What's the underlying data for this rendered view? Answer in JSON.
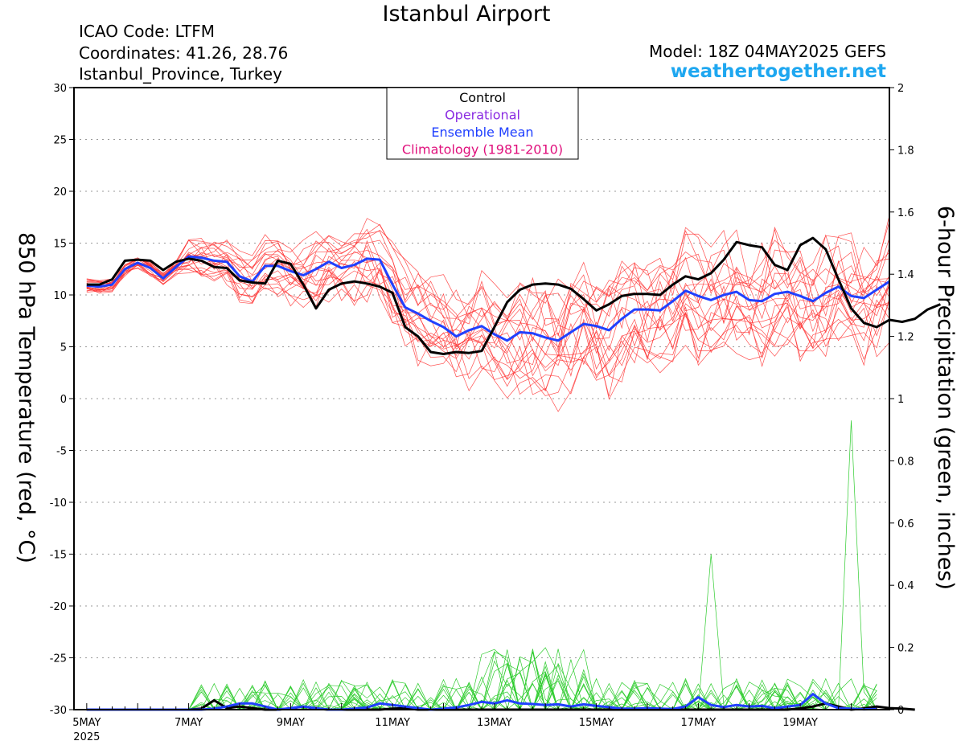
{
  "header": {
    "title": "Istanbul Airport",
    "icao": "ICAO Code: LTFM",
    "coordinates": "Coordinates: 41.26, 28.76",
    "location": "Istanbul_Province, Turkey",
    "model": "Model: 18Z 04MAY2025 GEFS",
    "website": "weathertogether.net"
  },
  "chart_data": {
    "type": "line",
    "title": "Istanbul Airport",
    "ylabel": "850 hPa Temperature (red, °C)",
    "y2label": "6-hour Precipitation (green, inches)",
    "ylim": [
      -30,
      30
    ],
    "y2lim": [
      0,
      2
    ],
    "yticks": [
      "30",
      "25",
      "20",
      "15",
      "10",
      "5",
      "0",
      "-5",
      "-10",
      "-15",
      "-20",
      "-25",
      "-30"
    ],
    "y2ticks": [
      "2",
      "1.8",
      "1.6",
      "1.4",
      "1.2",
      "1",
      "0.8",
      "0.6",
      "0.4",
      "0.2",
      "0"
    ],
    "xticks": [
      {
        "day": 5,
        "label": "5MAY",
        "sub": "2025"
      },
      {
        "day": 7,
        "label": "7MAY"
      },
      {
        "day": 9,
        "label": "9MAY"
      },
      {
        "day": 11,
        "label": "11MAY"
      },
      {
        "day": 13,
        "label": "13MAY"
      },
      {
        "day": 15,
        "label": "15MAY"
      },
      {
        "day": 17,
        "label": "17MAY"
      },
      {
        "day": 19,
        "label": "19MAY"
      }
    ],
    "xlim_days": [
      4.75,
      20.75
    ],
    "time_step_days": 0.25,
    "grid": "horizontal-dotted",
    "legend": {
      "placement": "top-center",
      "entries": [
        {
          "label": "Control",
          "color": "#000000"
        },
        {
          "label": "Operational",
          "color": "#8a2be2"
        },
        {
          "label": "Ensemble Mean",
          "color": "#2040ff"
        },
        {
          "label": "Climatology (1981-2010)",
          "color": "#e0107c"
        }
      ]
    },
    "series": [
      {
        "name": "Control",
        "axis": "temperature",
        "color": "#000000",
        "values": [
          11,
          11,
          11.5,
          13.3,
          13.4,
          13.3,
          12.4,
          13.2,
          13.5,
          13.3,
          12.7,
          12.6,
          11.4,
          11.2,
          11.1,
          13.3,
          13.0,
          11.0,
          8.7,
          10.5,
          11.1,
          11.3,
          11.1,
          10.8,
          10.2,
          6.9,
          6.0,
          4.5,
          4.3,
          4.5,
          4.4,
          4.6,
          6.9,
          9.3,
          10.5,
          11.0,
          11.1,
          11.0,
          10.6,
          9.6,
          8.5,
          9.1,
          9.9,
          10.1,
          10.1,
          10.0,
          11.0,
          11.8,
          11.5,
          12.1,
          13.4,
          15.1,
          14.8,
          14.6,
          12.9,
          12.4,
          14.8,
          15.5,
          14.4,
          11.5,
          8.7,
          7.3,
          6.9,
          7.6,
          7.4,
          7.7,
          8.6,
          9.1
        ]
      },
      {
        "name": "Ensemble Mean",
        "axis": "temperature",
        "color": "#2040ff",
        "values": [
          10.9,
          10.8,
          11.0,
          12.5,
          13.1,
          12.6,
          11.6,
          12.7,
          13.7,
          13.6,
          13.3,
          13.2,
          11.8,
          11.3,
          12.8,
          12.8,
          12.3,
          11.9,
          12.5,
          13.2,
          12.6,
          12.9,
          13.5,
          13.4,
          11.0,
          8.8,
          8.2,
          7.5,
          6.9,
          6.0,
          6.6,
          7.0,
          6.2,
          5.6,
          6.4,
          6.3,
          5.9,
          5.6,
          6.4,
          7.2,
          7.0,
          6.6,
          7.7,
          8.6,
          8.6,
          8.5,
          9.4,
          10.4,
          9.9,
          9.5,
          10.0,
          10.3,
          9.5,
          9.4,
          10.1,
          10.3,
          9.9,
          9.4,
          10.2,
          10.8,
          9.9,
          9.7,
          10.5,
          11.3
        ]
      },
      {
        "name": "Control precipitation",
        "axis": "precipitation",
        "color": "#000000",
        "values": [
          0,
          0,
          0,
          0,
          0,
          0,
          0,
          0,
          0,
          0.003,
          0.03,
          0.005,
          0.01,
          0.005,
          0,
          0,
          0.004,
          0.01,
          0.003,
          0,
          0,
          0,
          0,
          0,
          0.003,
          0.005,
          0,
          0,
          0,
          0,
          0,
          0,
          0,
          0,
          0,
          0,
          0,
          0,
          0,
          0,
          0,
          0,
          0,
          0,
          0,
          0,
          0,
          0,
          0,
          0,
          0,
          0,
          0,
          0,
          0,
          0,
          0.004,
          0.01,
          0.02,
          0.01,
          0,
          0.004,
          0.01,
          0.005,
          0.003,
          0
        ]
      },
      {
        "name": "Ensemble Mean precipitation",
        "axis": "precipitation",
        "color": "#2040ff",
        "values": [
          0,
          0,
          0,
          0,
          0,
          0,
          0,
          0,
          0,
          0,
          0.003,
          0.01,
          0.02,
          0.02,
          0.01,
          0,
          0.005,
          0.01,
          0.005,
          0,
          0,
          0.003,
          0.007,
          0.02,
          0.015,
          0.01,
          0.005,
          0,
          0.003,
          0.007,
          0.015,
          0.025,
          0.02,
          0.03,
          0.02,
          0.018,
          0.015,
          0.017,
          0.01,
          0.017,
          0.012,
          0.008,
          0.003,
          0.003,
          0.005,
          0.003,
          0.002,
          0.01,
          0.04,
          0.015,
          0.008,
          0.015,
          0.01,
          0.012,
          0.005,
          0.01,
          0.015,
          0.05,
          0.02,
          0.005,
          0.003,
          0.001,
          0.002
        ]
      }
    ]
  }
}
